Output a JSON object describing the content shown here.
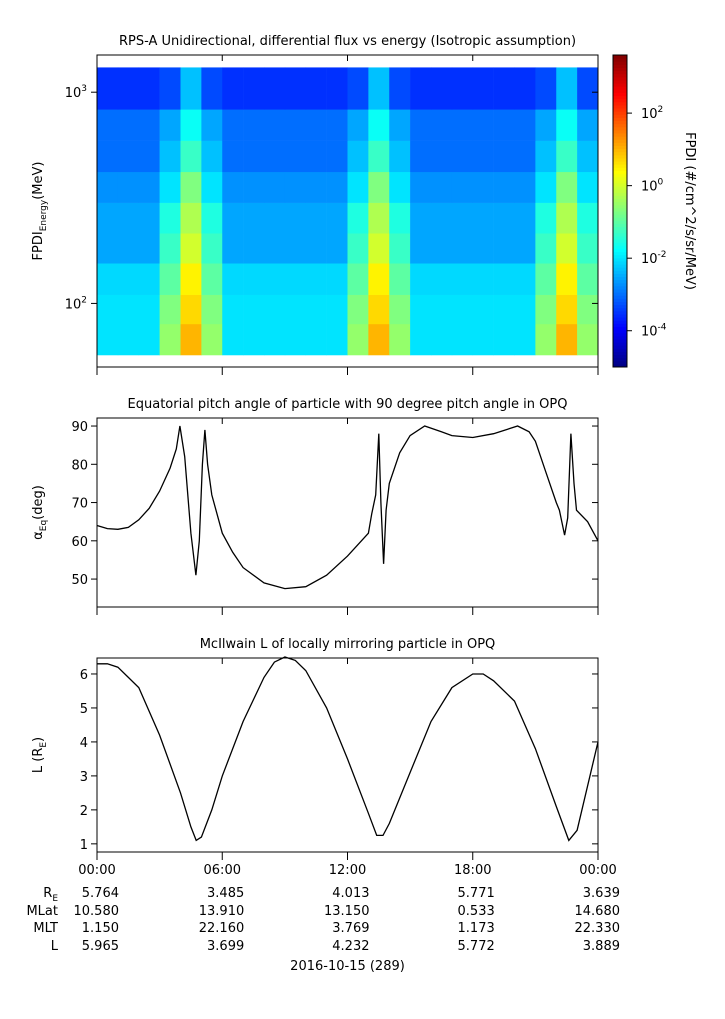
{
  "chart_data": [
    {
      "type": "heatmap",
      "title": "RPS-A Unidirectional, differential flux vs energy (Isotropic assumption)",
      "ylabel": "FPDI",
      "ylabel_sub": "Energy",
      "ylabel_unit": "(MeV)",
      "ylim": [
        50,
        1500
      ],
      "log_y": true,
      "yticks": [
        {
          "value": 100,
          "label": "10",
          "exponent": "2"
        },
        {
          "value": 1000,
          "label": "10",
          "exponent": "3"
        }
      ],
      "x_edges": [
        0,
        1,
        2,
        3,
        4,
        5,
        6,
        7,
        8,
        9,
        10,
        11,
        12,
        13,
        14,
        15,
        16,
        17,
        18,
        19,
        20,
        21,
        22,
        23,
        24
      ],
      "y_edges": [
        57,
        80,
        110,
        155,
        215,
        300,
        420,
        590,
        830,
        1310
      ],
      "z": [
        [
          0.01,
          0.01,
          0.01,
          0.3,
          10,
          0.3,
          0.01,
          0.01,
          0.01,
          0.01,
          0.01,
          0.01,
          0.3,
          10,
          0.3,
          0.01,
          0.01,
          0.01,
          0.01,
          0.01,
          0.01,
          0.3,
          10,
          0.3
        ],
        [
          0.01,
          0.01,
          0.01,
          0.2,
          5,
          0.2,
          0.01,
          0.01,
          0.01,
          0.01,
          0.01,
          0.01,
          0.2,
          5,
          0.2,
          0.01,
          0.01,
          0.01,
          0.01,
          0.01,
          0.01,
          0.2,
          5,
          0.2
        ],
        [
          0.008,
          0.008,
          0.008,
          0.1,
          3,
          0.1,
          0.008,
          0.008,
          0.008,
          0.008,
          0.008,
          0.008,
          0.1,
          3,
          0.1,
          0.008,
          0.008,
          0.008,
          0.008,
          0.008,
          0.008,
          0.1,
          3,
          0.1
        ],
        [
          0.003,
          0.003,
          0.003,
          0.05,
          1,
          0.05,
          0.003,
          0.003,
          0.003,
          0.003,
          0.003,
          0.003,
          0.05,
          1,
          0.05,
          0.003,
          0.003,
          0.003,
          0.003,
          0.003,
          0.003,
          0.05,
          1,
          0.05
        ],
        [
          0.003,
          0.003,
          0.003,
          0.03,
          0.5,
          0.03,
          0.003,
          0.003,
          0.003,
          0.003,
          0.003,
          0.003,
          0.03,
          0.5,
          0.03,
          0.003,
          0.003,
          0.003,
          0.003,
          0.003,
          0.003,
          0.03,
          0.5,
          0.03
        ],
        [
          0.002,
          0.002,
          0.002,
          0.01,
          0.2,
          0.01,
          0.002,
          0.002,
          0.002,
          0.002,
          0.002,
          0.002,
          0.01,
          0.2,
          0.01,
          0.002,
          0.002,
          0.002,
          0.002,
          0.002,
          0.002,
          0.01,
          0.2,
          0.01
        ],
        [
          0.001,
          0.001,
          0.001,
          0.005,
          0.05,
          0.005,
          0.001,
          0.001,
          0.001,
          0.001,
          0.001,
          0.001,
          0.005,
          0.05,
          0.005,
          0.001,
          0.001,
          0.001,
          0.001,
          0.001,
          0.001,
          0.005,
          0.05,
          0.005
        ],
        [
          0.001,
          0.001,
          0.001,
          0.003,
          0.02,
          0.003,
          0.001,
          0.001,
          0.001,
          0.001,
          0.001,
          0.001,
          0.003,
          0.02,
          0.003,
          0.001,
          0.001,
          0.001,
          0.001,
          0.001,
          0.001,
          0.003,
          0.02,
          0.003
        ],
        [
          0.0003,
          0.0003,
          0.0003,
          0.0005,
          0.005,
          0.0005,
          0.0003,
          0.0003,
          0.0003,
          0.0003,
          0.0003,
          0.0003,
          0.0005,
          0.005,
          0.0005,
          0.0003,
          0.0003,
          0.0003,
          0.0003,
          0.0003,
          0.0003,
          0.0005,
          0.005,
          0.0005
        ]
      ],
      "zlim": [
        1e-05,
        4000
      ],
      "log_z": true,
      "colormap": "jet",
      "zlabel": "FPDI (#/cm^2/s/sr/MeV)",
      "zticks": [
        {
          "value": 0.0001,
          "label": "10",
          "exponent": "-4"
        },
        {
          "value": 0.01,
          "label": "10",
          "exponent": "-2"
        },
        {
          "value": 1,
          "label": "10",
          "exponent": "0"
        },
        {
          "value": 100,
          "label": "10",
          "exponent": "2"
        }
      ]
    },
    {
      "type": "line",
      "title": "Equatorial pitch angle of particle with 90 degree pitch angle in OPQ",
      "ylabel": "α",
      "ylabel_sub": "Eq",
      "ylabel_unit": "(deg)",
      "color": "#000000",
      "ylim": [
        42.7,
        92.1
      ],
      "yticks": [
        50,
        60,
        70,
        80,
        90
      ],
      "x": [
        0,
        0.5,
        1,
        1.5,
        2,
        2.5,
        3,
        3.5,
        3.8,
        3.97,
        4.2,
        4.5,
        4.74,
        4.9,
        5.05,
        5.17,
        5.3,
        5.5,
        6,
        6.5,
        7,
        8,
        9,
        10,
        11,
        12,
        13,
        13.16,
        13.35,
        13.5,
        13.6,
        13.73,
        13.85,
        14,
        14.5,
        15,
        15.7,
        16.5,
        17,
        18,
        19,
        20.15,
        20.7,
        21,
        21.5,
        22,
        22.15,
        22.4,
        22.55,
        22.7,
        22.85,
        22.97,
        23.5,
        24
      ],
      "values": [
        64,
        63.2,
        63,
        63.5,
        65.5,
        68.5,
        73,
        79,
        84,
        90,
        82,
        62,
        51,
        60,
        80,
        89,
        80,
        72,
        62,
        57,
        53,
        49,
        47.5,
        48,
        51,
        56,
        62,
        67,
        72,
        88,
        70,
        54,
        68,
        75,
        83,
        87.5,
        90,
        88.5,
        87.5,
        87,
        88,
        90,
        88.5,
        86,
        78,
        70,
        68,
        61.5,
        66,
        88,
        75,
        68,
        65,
        60
      ]
    },
    {
      "type": "line",
      "title": "McIlwain L of locally mirroring particle in OPQ",
      "ylabel": "L (R",
      "ylabel_sub": "E",
      "ylabel_unit": ")",
      "color": "#000000",
      "ylim": [
        0.76,
        6.47
      ],
      "yticks": [
        1,
        2,
        3,
        4,
        5,
        6
      ],
      "xlim": [
        0,
        24
      ],
      "xticks": [
        {
          "value": 0,
          "label": "00:00"
        },
        {
          "value": 6,
          "label": "06:00"
        },
        {
          "value": 12,
          "label": "12:00"
        },
        {
          "value": 18,
          "label": "18:00"
        },
        {
          "value": 24,
          "label": "00:00"
        }
      ],
      "x": [
        0,
        0.5,
        1,
        2,
        3,
        4,
        4.5,
        4.75,
        5,
        5.5,
        6,
        7,
        8,
        8.5,
        9,
        9.5,
        10,
        11,
        12,
        13,
        13.4,
        13.7,
        14,
        15,
        16,
        17,
        18,
        18.5,
        19,
        20,
        21,
        22,
        22.6,
        23,
        24
      ],
      "values": [
        6.3,
        6.3,
        6.2,
        5.6,
        4.2,
        2.5,
        1.5,
        1.1,
        1.2,
        2.0,
        3.0,
        4.6,
        5.9,
        6.35,
        6.5,
        6.4,
        6.1,
        5.0,
        3.5,
        1.9,
        1.25,
        1.25,
        1.6,
        3.1,
        4.6,
        5.6,
        6.0,
        6.0,
        5.8,
        5.2,
        3.8,
        2.1,
        1.1,
        1.4,
        4.0
      ]
    }
  ],
  "ephemeris": {
    "rows": [
      {
        "label": "R",
        "label_sub": "E",
        "values": [
          "5.764",
          "3.485",
          "4.013",
          "5.771",
          "3.639"
        ]
      },
      {
        "label": "MLat",
        "values": [
          "10.580",
          "13.910",
          "13.150",
          "0.533",
          "14.680"
        ]
      },
      {
        "label": "MLT",
        "values": [
          "1.150",
          "22.160",
          "3.769",
          "1.173",
          "22.330"
        ]
      },
      {
        "label": "L",
        "values": [
          "5.965",
          "3.699",
          "4.232",
          "5.772",
          "3.889"
        ]
      }
    ],
    "date": "2016-10-15 (289)"
  }
}
